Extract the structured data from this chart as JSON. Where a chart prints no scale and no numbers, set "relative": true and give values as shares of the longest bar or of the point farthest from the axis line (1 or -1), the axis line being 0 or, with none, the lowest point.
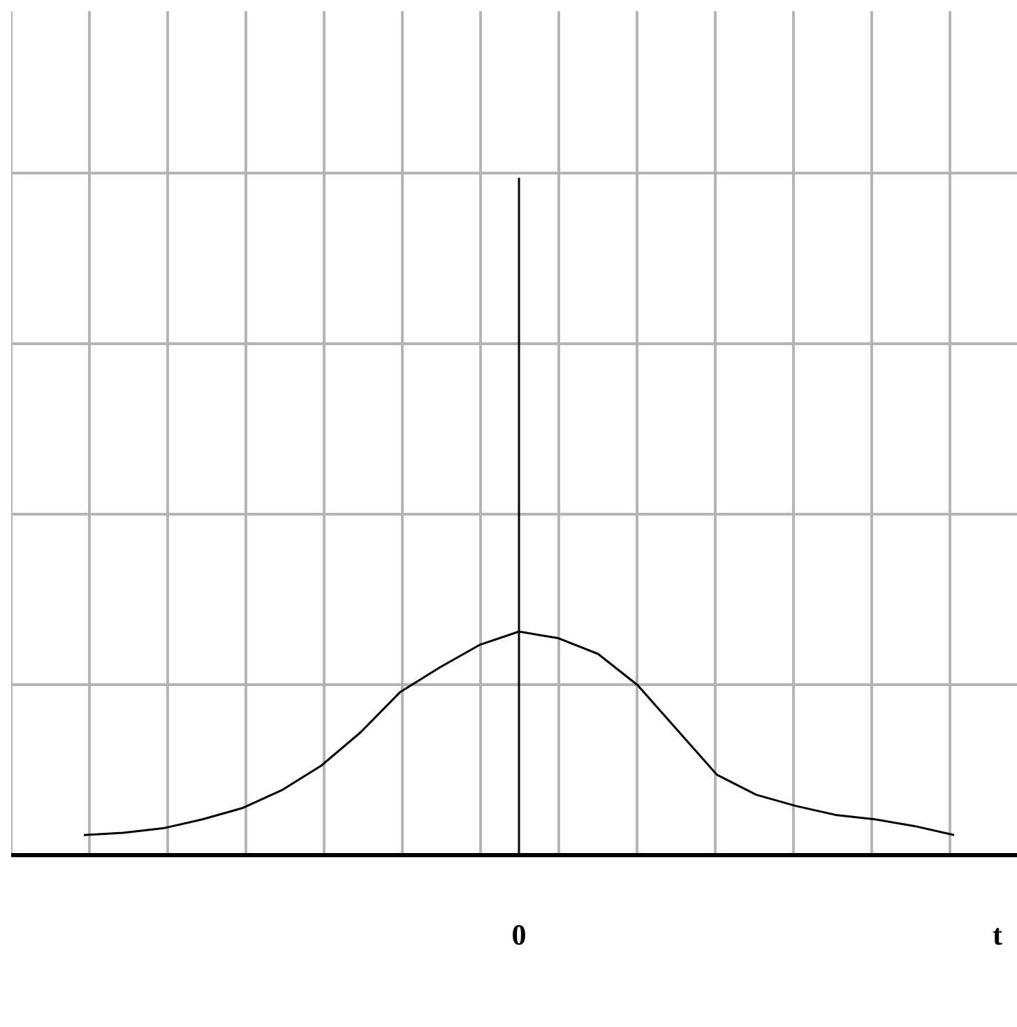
{
  "chart_data": {
    "type": "line",
    "relative": true,
    "xlabel": "t",
    "grid": true,
    "marker": "none",
    "line_style": "solid",
    "annotations": [
      "0"
    ],
    "categories": [
      null,
      null,
      null,
      null,
      null,
      null,
      null,
      null,
      null,
      null,
      null,
      null,
      null,
      null,
      null,
      null,
      null,
      null,
      null,
      null,
      null,
      null,
      null
    ],
    "series": [
      {
        "color": "#000000",
        "values": [
          0.09,
          0.1,
          0.12,
          0.16,
          0.21,
          0.29,
          0.4,
          0.55,
          0.73,
          0.84,
          0.94,
          1,
          0.97,
          0.9,
          0.76,
          0.56,
          0.36,
          0.27,
          0.22,
          0.18,
          0.16,
          0.13,
          0.09
        ]
      }
    ]
  }
}
